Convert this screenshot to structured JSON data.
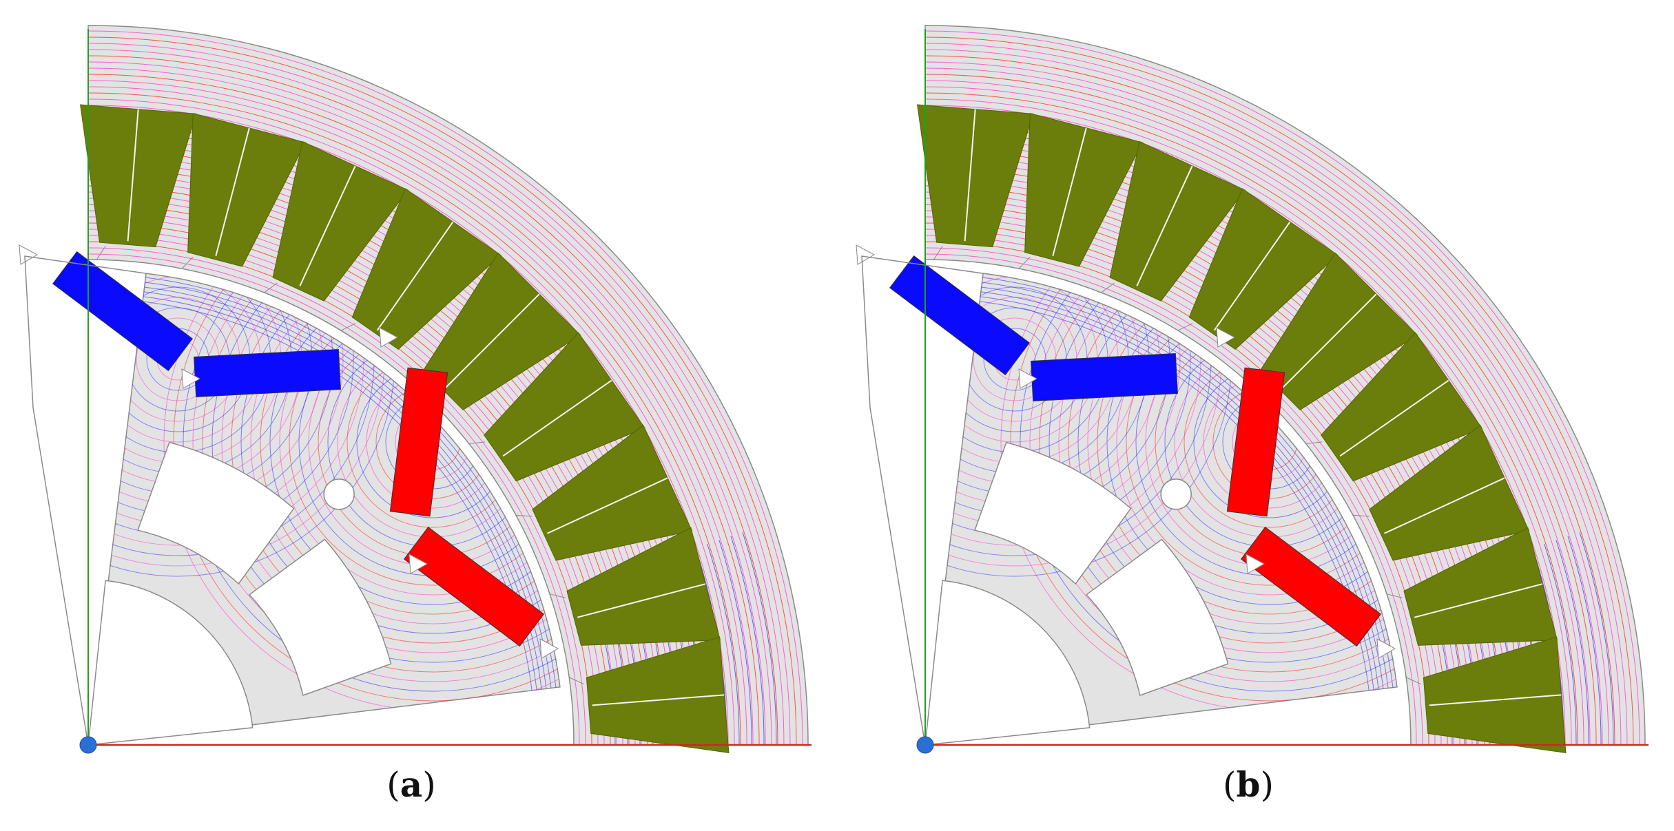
{
  "panels": [
    {
      "id": "a",
      "label": "a",
      "rotor_angle_deg": 0
    },
    {
      "id": "b",
      "label": "b",
      "rotor_angle_deg": 0
    }
  ],
  "colors": {
    "core": "#e3e3e3",
    "core_stroke": "#8a8a8a",
    "winding": "#6b7d0a",
    "magnet_north": "#ff0000",
    "magnet_south": "#0a0aff",
    "flux_magenta": "#ff33cc",
    "flux_red": "#ff2020",
    "flux_blue": "#2a2aff",
    "axis_x": "#e02020",
    "axis_y": "#20a020",
    "origin_dot": "#2a6fd6"
  },
  "geometry_meta": {
    "stator_slots": 9,
    "magnet_pairs": 2
  }
}
